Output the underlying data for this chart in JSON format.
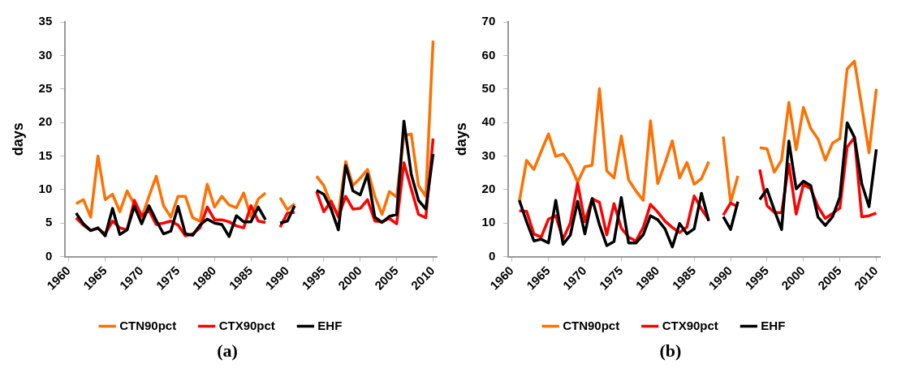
{
  "chart_data": [
    {
      "type": "line",
      "ylabel": "days",
      "annotations": [
        "(a)"
      ],
      "legend": "bottom",
      "marker": "none",
      "line_style": "solid",
      "grid": false,
      "x": [
        1961,
        1962,
        1963,
        1964,
        1965,
        1966,
        1967,
        1968,
        1969,
        1970,
        1971,
        1972,
        1973,
        1974,
        1975,
        1976,
        1977,
        1978,
        1979,
        1980,
        1981,
        1982,
        1983,
        1984,
        1985,
        1986,
        1987,
        1988,
        1989,
        1990,
        1991,
        1992,
        1993,
        1994,
        1995,
        1996,
        1997,
        1998,
        1999,
        2000,
        2001,
        2002,
        2003,
        2004,
        2005,
        2006,
        2007,
        2008,
        2009,
        2010
      ],
      "xlim": [
        1959.5,
        2010.5
      ],
      "xticks": [
        1960,
        1965,
        1970,
        1975,
        1980,
        1985,
        1990,
        1995,
        2000,
        2005,
        2010
      ],
      "ylim": [
        0,
        35
      ],
      "yticks": [
        0,
        5,
        10,
        15,
        20,
        25,
        30,
        35
      ],
      "series": [
        {
          "name": "CTN90pct",
          "color": "#ff7000",
          "values": [
            7.9,
            8.5,
            5.9,
            15.0,
            8.5,
            9.3,
            6.7,
            9.8,
            7.8,
            5.8,
            9.0,
            12.0,
            7.6,
            5.9,
            9.0,
            9.0,
            5.8,
            5.3,
            10.8,
            7.4,
            9.0,
            7.7,
            7.3,
            9.5,
            5.9,
            8.6,
            9.5,
            null,
            8.8,
            7.0,
            7.9,
            null,
            null,
            12.0,
            10.6,
            7.8,
            6.3,
            14.2,
            10.6,
            11.7,
            13.0,
            9.0,
            6.3,
            9.7,
            8.9,
            18.0,
            18.3,
            10.6,
            9.0,
            32.2
          ]
        },
        {
          "name": "CTX90pct",
          "color": "#ff0000",
          "values": [
            5.8,
            4.7,
            3.9,
            4.2,
            3.4,
            5.3,
            4.3,
            4.0,
            8.4,
            6.1,
            6.9,
            4.8,
            5.0,
            5.3,
            4.7,
            3.1,
            3.4,
            4.3,
            7.4,
            5.5,
            5.5,
            5.2,
            4.6,
            4.3,
            7.6,
            5.3,
            5.1,
            null,
            4.4,
            6.5,
            6.6,
            null,
            null,
            9.7,
            6.7,
            8.3,
            5.9,
            9.0,
            7.1,
            7.2,
            8.5,
            5.3,
            5.2,
            5.7,
            4.9,
            14.0,
            10.1,
            6.3,
            5.8,
            17.6
          ]
        },
        {
          "name": "EHF",
          "color": "#000000",
          "values": [
            6.5,
            4.9,
            3.9,
            4.3,
            3.1,
            7.2,
            3.3,
            4.0,
            7.5,
            4.9,
            7.6,
            5.4,
            3.4,
            3.8,
            7.5,
            3.4,
            3.2,
            4.7,
            5.6,
            5.0,
            4.8,
            3.0,
            6.1,
            5.2,
            5.2,
            7.4,
            5.5,
            null,
            5.0,
            5.3,
            7.6,
            null,
            null,
            9.9,
            9.3,
            7.1,
            4.0,
            13.6,
            9.8,
            9.2,
            12.3,
            5.9,
            5.1,
            6.0,
            6.3,
            20.2,
            12.3,
            8.4,
            7.1,
            15.3
          ]
        }
      ]
    },
    {
      "type": "line",
      "ylabel": "days",
      "annotations": [
        "(b)"
      ],
      "legend": "bottom",
      "marker": "none",
      "line_style": "solid",
      "grid": false,
      "x": [
        1961,
        1962,
        1963,
        1964,
        1965,
        1966,
        1967,
        1968,
        1969,
        1970,
        1971,
        1972,
        1973,
        1974,
        1975,
        1976,
        1977,
        1978,
        1979,
        1980,
        1981,
        1982,
        1983,
        1984,
        1985,
        1986,
        1987,
        1988,
        1989,
        1990,
        1991,
        1992,
        1993,
        1994,
        1995,
        1996,
        1997,
        1998,
        1999,
        2000,
        2001,
        2002,
        2003,
        2004,
        2005,
        2006,
        2007,
        2008,
        2009,
        2010
      ],
      "xlim": [
        1959.5,
        2010.5
      ],
      "xticks": [
        1960,
        1965,
        1970,
        1975,
        1980,
        1985,
        1990,
        1995,
        2000,
        2005,
        2010
      ],
      "ylim": [
        0,
        70
      ],
      "yticks": [
        0,
        10,
        20,
        30,
        40,
        50,
        60,
        70
      ],
      "series": [
        {
          "name": "CTN90pct",
          "color": "#ff7000",
          "values": [
            16.5,
            28.7,
            26.0,
            31.4,
            36.6,
            29.9,
            30.6,
            27.2,
            22.2,
            26.8,
            27.3,
            50.1,
            25.6,
            23.5,
            36.0,
            22.9,
            19.6,
            16.8,
            40.5,
            21.8,
            27.9,
            34.5,
            23.5,
            28.1,
            21.6,
            23.3,
            28.3,
            null,
            35.8,
            16.2,
            24.1,
            null,
            null,
            32.5,
            32.2,
            25.2,
            28.8,
            46.0,
            31.9,
            44.5,
            38.2,
            35.1,
            28.8,
            33.9,
            35.2,
            56.0,
            58.3,
            44.8,
            31.0,
            50
          ]
        },
        {
          "name": "CTX90pct",
          "color": "#ff0000",
          "values": [
            13.7,
            13.5,
            6.8,
            5.8,
            11.2,
            12.2,
            5.2,
            10.1,
            21.9,
            10.4,
            17.3,
            16.2,
            6.5,
            15.8,
            8.5,
            5.8,
            4.7,
            8.7,
            15.6,
            13.3,
            10.6,
            8.7,
            7.2,
            8.8,
            18.1,
            14.2,
            11.0,
            null,
            12.4,
            16.0,
            14.9,
            null,
            null,
            26.0,
            15.2,
            13.2,
            13.1,
            27.6,
            12.7,
            21.6,
            20.2,
            14.9,
            11.4,
            12.9,
            14.5,
            32.7,
            35.5,
            11.9,
            12.2,
            13
          ]
        },
        {
          "name": "EHF",
          "color": "#000000",
          "values": [
            16.8,
            10.4,
            4.7,
            5.2,
            4.1,
            16.8,
            3.7,
            6.4,
            16.5,
            6.8,
            17.3,
            9.5,
            3.3,
            4.5,
            17.6,
            4.1,
            4.1,
            6.5,
            12.2,
            11.0,
            8.3,
            2.9,
            9.9,
            6.8,
            8.3,
            18.9,
            10.6,
            null,
            11.9,
            8.1,
            16.4,
            null,
            null,
            17.0,
            20.1,
            13.9,
            8.1,
            34.5,
            20.2,
            22.5,
            21.2,
            11.8,
            9.3,
            11.9,
            17.8,
            39.9,
            35.6,
            21.8,
            14.9,
            32
          ]
        }
      ]
    }
  ]
}
